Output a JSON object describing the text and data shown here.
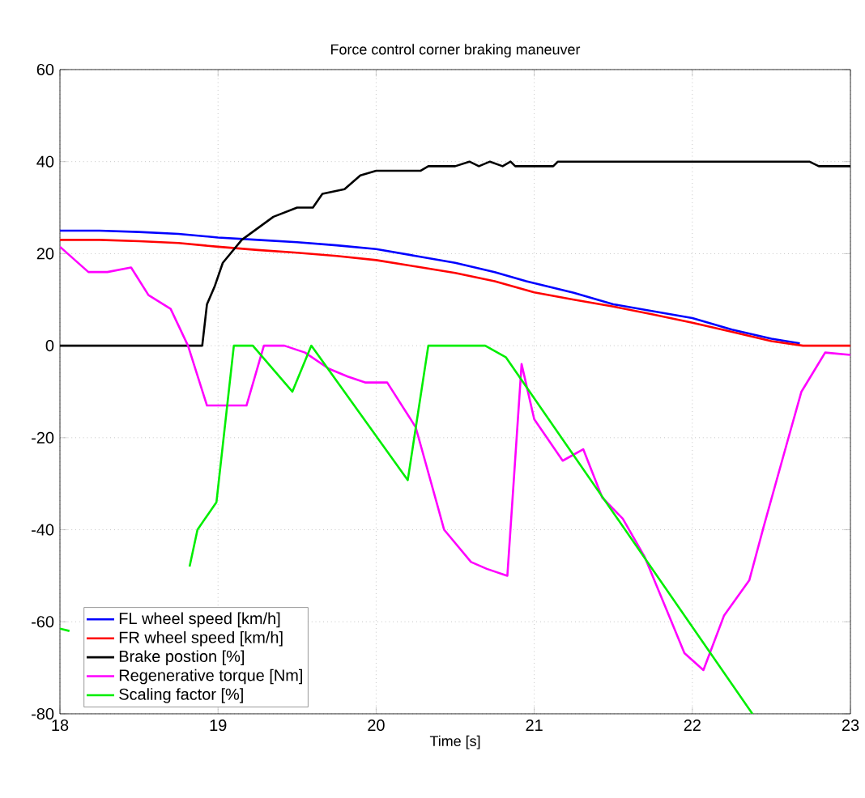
{
  "chart_data": {
    "type": "line",
    "title": "Force control corner braking maneuver",
    "xlabel": "Time [s]",
    "xlim": [
      18,
      23
    ],
    "ylim": [
      -80,
      60
    ],
    "xticks": [
      18,
      19,
      20,
      21,
      22,
      23
    ],
    "yticks": [
      -80,
      -60,
      -40,
      -20,
      0,
      20,
      40,
      60
    ],
    "grid": true,
    "legend": "bottom left",
    "line_style": "solid",
    "marker": "none",
    "series": [
      {
        "name": "FL wheel speed [km/h]",
        "color": "#0000ff",
        "x": [
          18,
          18.25,
          18.5,
          18.75,
          19,
          19.25,
          19.5,
          19.75,
          20,
          20.25,
          20.5,
          20.75,
          20.95,
          21.25,
          21.5,
          21.75,
          22,
          22.25,
          22.5,
          22.68
        ],
        "values": [
          25,
          25,
          24.7,
          24.3,
          23.5,
          23,
          22.5,
          21.8,
          21,
          19.5,
          18,
          16,
          14,
          11.5,
          9,
          7.5,
          6,
          3.5,
          1.5,
          0.5
        ]
      },
      {
        "name": "FR wheel speed [km/h]",
        "color": "#ff0000",
        "x": [
          18,
          18.25,
          18.5,
          18.75,
          19,
          19.25,
          19.5,
          19.75,
          20,
          20.25,
          20.5,
          20.75,
          21,
          21.25,
          21.5,
          21.75,
          22,
          22.25,
          22.5,
          22.7,
          23
        ],
        "values": [
          23,
          23,
          22.7,
          22.3,
          21.5,
          20.8,
          20.2,
          19.5,
          18.6,
          17.2,
          15.8,
          14,
          11.6,
          10,
          8.5,
          6.8,
          5,
          3,
          1,
          0,
          0
        ]
      },
      {
        "name": "Brake postion [%]",
        "color": "#000000",
        "x": [
          18,
          18.9,
          18.93,
          18.98,
          19.03,
          19.15,
          19.35,
          19.5,
          19.6,
          19.66,
          19.8,
          19.9,
          20,
          20.28,
          20.33,
          20.5,
          20.59,
          20.65,
          20.72,
          20.8,
          20.85,
          20.88,
          21.12,
          21.15,
          22.74,
          22.8,
          23
        ],
        "values": [
          0,
          0,
          9,
          13,
          18,
          23,
          28,
          30,
          30,
          33,
          34,
          37,
          38,
          38,
          39,
          39,
          40,
          39,
          40,
          39,
          40,
          39,
          39,
          40,
          40,
          39,
          39
        ]
      },
      {
        "name": "Regenerative torque [Nm]",
        "color": "#ff00ff",
        "x": [
          18,
          18.18,
          18.3,
          18.45,
          18.56,
          18.7,
          18.81,
          18.93,
          19.18,
          19.29,
          19.42,
          19.55,
          19.7,
          19.82,
          19.93,
          20.07,
          20.25,
          20.39,
          20.43,
          20.6,
          20.7,
          20.83,
          20.92,
          21,
          21.18,
          21.31,
          21.43,
          21.56,
          21.7,
          21.95,
          22.07,
          22.2,
          22.36,
          22.45,
          22.6,
          22.69,
          22.84,
          23
        ],
        "values": [
          21.5,
          16,
          16,
          17,
          11,
          8,
          0,
          -13,
          -13,
          0,
          0,
          -1.5,
          -5,
          -6.7,
          -8,
          -8,
          -17.7,
          -35,
          -40,
          -47,
          -48.5,
          -50,
          -4,
          -16,
          -25,
          -22.5,
          -33,
          -37.6,
          -46,
          -66.8,
          -70.5,
          -58.7,
          -51,
          -39.5,
          -21,
          -10,
          -1.5,
          -2
        ]
      },
      {
        "name": "Scaling factor [%]",
        "color": "#00ee00",
        "x": [
          18,
          18.06,
          18.4,
          18.82,
          18.87,
          18.99,
          19.1,
          19.22,
          19.47,
          19.59,
          20.2,
          20.33,
          20.69,
          20.82,
          22.38
        ],
        "values": [
          -61.5,
          -62,
          null,
          -48,
          -40,
          -34,
          0,
          0,
          -10,
          0,
          -29.2,
          0,
          0,
          -2.5,
          -80
        ]
      }
    ]
  }
}
